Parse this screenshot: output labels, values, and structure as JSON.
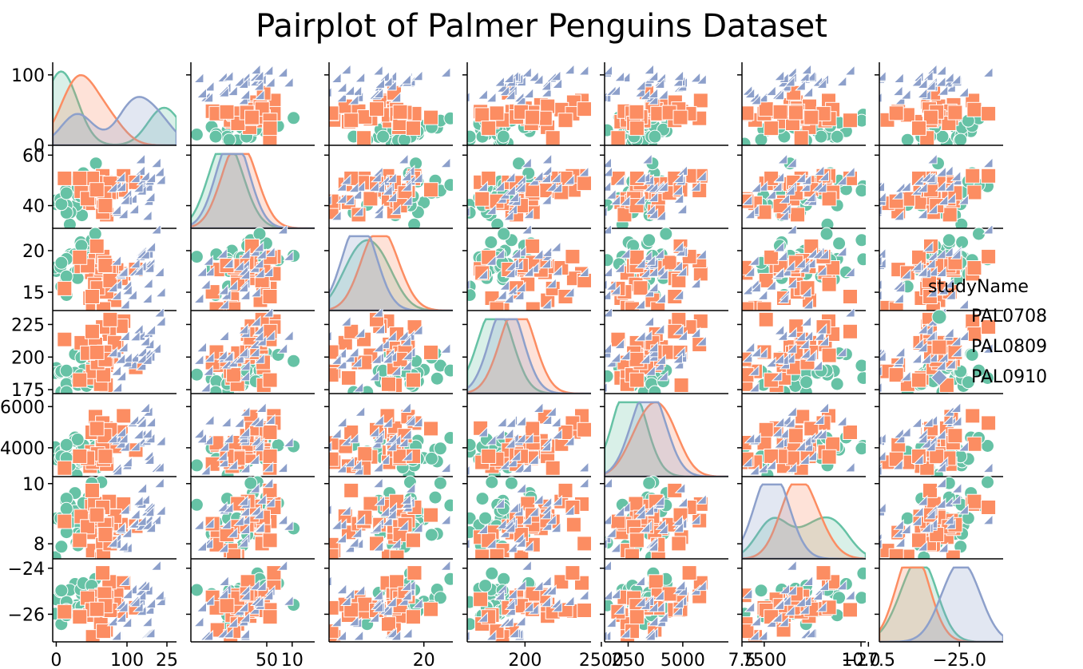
{
  "chart_data": {
    "type": "scatter",
    "kind": "pairplot",
    "title": "Pairplot of Palmer Penguins Dataset",
    "hue": "studyName",
    "grid": false,
    "legend_position": "center-right",
    "variables": [
      {
        "range": [
          -5,
          170
        ],
        "ticks": [
          0,
          100
        ],
        "tick_labels": [
          "0",
          "100"
        ]
      },
      {
        "range": [
          31,
          62
        ],
        "ticks": [
          25,
          50
        ],
        "tick_labels": [
          "25",
          "50"
        ],
        "ytick_labels": [
          "40",
          "60"
        ],
        "yticks": [
          40,
          60
        ]
      },
      {
        "range": [
          12.8,
          22.2
        ],
        "ticks": [
          10,
          20
        ],
        "tick_labels": [
          "10",
          "20"
        ],
        "yticks": [
          15,
          20
        ],
        "ytick_labels": [
          "15",
          "20"
        ]
      },
      {
        "range": [
          172,
          232
        ],
        "ticks": [
          200,
          250
        ],
        "tick_labels": [
          "200",
          "250"
        ],
        "yticks": [
          175,
          200,
          225
        ],
        "ytick_labels": [
          "175",
          "200",
          "225"
        ]
      },
      {
        "range": [
          2600,
          6400
        ],
        "ticks": [
          2500,
          5000,
          7500
        ],
        "tick_labels": [
          "2500",
          "5000",
          "7500"
        ],
        "yticks": [
          4000,
          6000
        ],
        "ytick_labels": [
          "4000",
          "6000"
        ]
      },
      {
        "range": [
          7.5,
          10.1
        ],
        "ticks": [
          7.5,
          10.0
        ],
        "tick_labels": [
          "7.5",
          "10.0"
        ],
        "yticks": [
          8,
          10
        ],
        "ytick_labels": [
          "8",
          "10"
        ]
      },
      {
        "range": [
          -27.2,
          -23.8
        ],
        "ticks": [
          -27.5,
          -25.0
        ],
        "tick_labels": [
          "−27.5",
          "−25.0"
        ],
        "yticks": [
          -26,
          -24
        ],
        "ytick_labels": [
          "−26",
          "−24"
        ]
      }
    ],
    "series": [
      {
        "name": "PAL0708",
        "color": "#66c2a5",
        "marker": "circle",
        "center": [
          28,
          44,
          18.2,
          189,
          3750,
          8.8,
          -25.4
        ],
        "spread": [
          18,
          5.5,
          1.9,
          9,
          500,
          0.65,
          0.6
        ]
      },
      {
        "name": "PAL0809",
        "color": "#fc8d62",
        "marker": "square",
        "center": [
          68,
          44,
          17.2,
          202,
          4200,
          8.7,
          -25.6
        ],
        "spread": [
          25,
          5.5,
          2.0,
          14,
          750,
          0.5,
          0.7
        ]
      },
      {
        "name": "PAL0910",
        "color": "#8da0cb",
        "marker": "diamond",
        "center": [
          118,
          45,
          17.1,
          201,
          4200,
          8.8,
          -25.8
        ],
        "spread": [
          18,
          6.0,
          2.0,
          14,
          800,
          0.6,
          0.8
        ]
      }
    ],
    "diagonal_kde_curves": [
      [
        [
          0.05,
          0.9,
          0.1
        ],
        [
          0.25,
          0.35,
          0.25
        ],
        [
          0.2,
          0.35,
          0.45
        ],
        [
          0.25,
          0.25,
          0.15
        ],
        [
          0.2,
          0.2,
          0.2
        ],
        [
          0.25,
          0.75,
          0.55
        ],
        [
          0.35,
          0.35,
          0.2
        ]
      ],
      [
        [
          0.25,
          0.15,
          0.45
        ],
        [
          0.45,
          0.35,
          0.35
        ],
        [
          0.35,
          0.5,
          0.4
        ],
        [
          0.45,
          0.35,
          0.4
        ],
        [
          0.3,
          0.5,
          0.45
        ],
        [
          0.42,
          0.45,
          0.6
        ],
        [
          0.3,
          0.25,
          0.25
        ]
      ],
      [
        [
          0.65,
          0.2,
          0.85
        ],
        [
          0.35,
          0.35,
          0.3
        ],
        [
          0.25,
          0.2,
          0.3
        ],
        [
          0.3,
          0.35,
          0.3
        ],
        [
          0.4,
          0.3,
          0.35
        ],
        [
          0.22,
          0.3,
          0.2
        ],
        [
          0.65,
          0.75,
          0.55
        ]
      ]
    ]
  },
  "legend": {
    "title": "studyName",
    "entries": [
      {
        "label": "PAL0708",
        "color": "#66c2a5",
        "marker": "circle"
      },
      {
        "label": "PAL0809",
        "color": "#fc8d62",
        "marker": "square"
      },
      {
        "label": "PAL0910",
        "color": "#8da0cb",
        "marker": "diamond"
      }
    ]
  }
}
